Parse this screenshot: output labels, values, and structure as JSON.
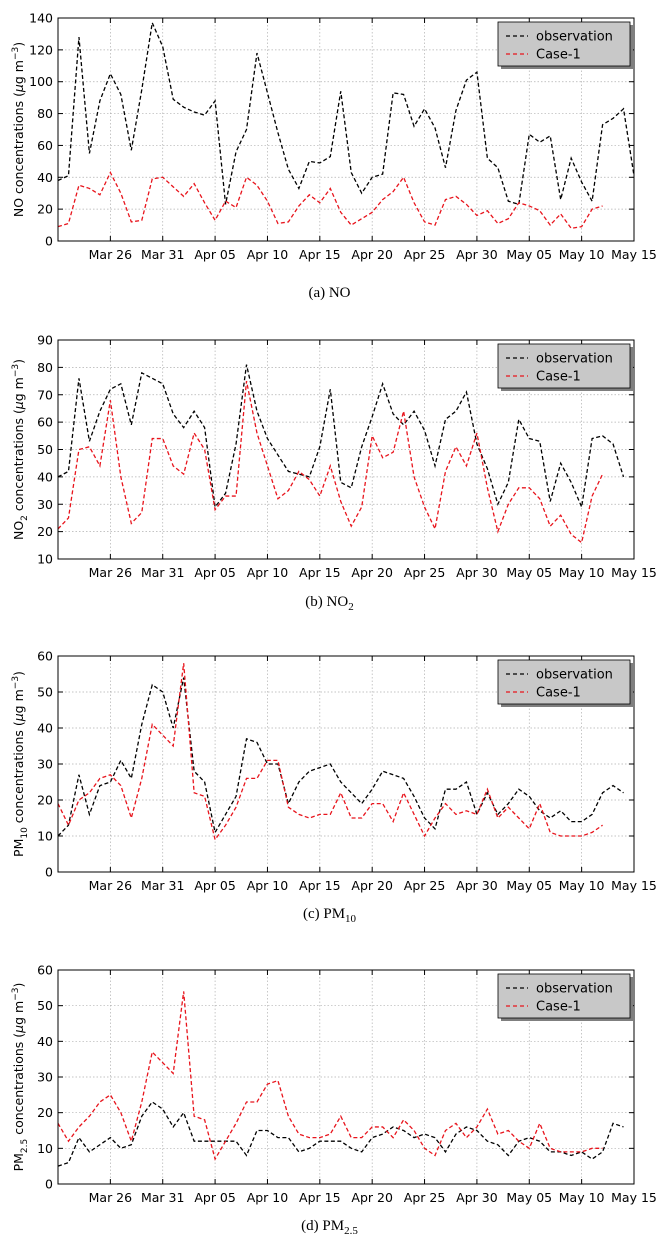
{
  "chart_data": [
    {
      "type": "line",
      "caption": "(a) NO",
      "ylabel_main": "NO concentrations (",
      "ylabel_mu": "μ",
      "ylabel_unit": "g m",
      "ylabel_sup": "−3",
      "ylabel_end": ")",
      "ylim": [
        0,
        140
      ],
      "yticks": [
        0,
        20,
        40,
        60,
        80,
        100,
        120,
        140
      ],
      "xlim": [
        0,
        55
      ],
      "xtick_positions": [
        5,
        10,
        15,
        20,
        25,
        30,
        35,
        40,
        45,
        50,
        55
      ],
      "xtick_labels": [
        "Mar 26",
        "Mar 31",
        "Apr 05",
        "Apr 10",
        "Apr 15",
        "Apr 20",
        "Apr 25",
        "Apr 30",
        "May 05",
        "May 10",
        "May 15"
      ],
      "grid": true,
      "legend_position": "top-right",
      "series": [
        {
          "name": "observation",
          "color": "#000000",
          "values": [
            38,
            41,
            128,
            55,
            88,
            105,
            92,
            57,
            95,
            137,
            122,
            89,
            84,
            81,
            79,
            88,
            23,
            56,
            70,
            118,
            93,
            68,
            45,
            33,
            50,
            49,
            53,
            94,
            43,
            30,
            40,
            42,
            93,
            92,
            72,
            83,
            71,
            46,
            82,
            101,
            106,
            52,
            46,
            25,
            23,
            67,
            62,
            66,
            26,
            52,
            37,
            25,
            73,
            77,
            83,
            41
          ]
        },
        {
          "name": "Case-1",
          "color": "#e8141c",
          "values": [
            9,
            11,
            35,
            33,
            29,
            43,
            30,
            12,
            13,
            39,
            40,
            34,
            28,
            36,
            24,
            13,
            25,
            21,
            40,
            35,
            25,
            11,
            12,
            22,
            29,
            24,
            33,
            18,
            10,
            14,
            18,
            26,
            31,
            40,
            24,
            12,
            10,
            26,
            28,
            23,
            16,
            19,
            11,
            14,
            24,
            22,
            19,
            10,
            17,
            8,
            9,
            20,
            22
          ]
        }
      ]
    },
    {
      "type": "line",
      "caption": "(b) NO",
      "caption_sub": "2",
      "ylabel_main": "NO",
      "ylabel_sub": "2",
      "ylabel_rest": " concentrations (",
      "ylabel_mu": "μ",
      "ylabel_unit": "g m",
      "ylabel_sup": "−3",
      "ylabel_end": ")",
      "ylim": [
        10,
        90
      ],
      "yticks": [
        10,
        20,
        30,
        40,
        50,
        60,
        70,
        80,
        90
      ],
      "xlim": [
        0,
        55
      ],
      "xtick_positions": [
        5,
        10,
        15,
        20,
        25,
        30,
        35,
        40,
        45,
        50,
        55
      ],
      "xtick_labels": [
        "Mar 26",
        "Mar 31",
        "Apr 05",
        "Apr 10",
        "Apr 15",
        "Apr 20",
        "Apr 25",
        "Apr 30",
        "May 05",
        "May 10",
        "May 15"
      ],
      "grid": true,
      "legend_position": "top-right",
      "series": [
        {
          "name": "observation",
          "color": "#000000",
          "values": [
            40,
            42,
            76,
            53,
            64,
            72,
            74,
            59,
            78,
            76,
            74,
            63,
            58,
            64,
            58,
            29,
            34,
            52,
            81,
            64,
            54,
            48,
            42,
            41,
            40,
            51,
            72,
            38,
            36,
            51,
            62,
            74,
            63,
            59,
            64,
            57,
            44,
            61,
            64,
            71,
            52,
            43,
            30,
            38,
            61,
            54,
            53,
            31,
            45,
            38,
            29,
            54,
            55,
            52,
            40
          ]
        },
        {
          "name": "Case-1",
          "color": "#e8141c",
          "values": [
            21,
            25,
            50,
            51,
            44,
            68,
            40,
            23,
            27,
            54,
            54,
            44,
            41,
            56,
            50,
            28,
            33,
            33,
            75,
            56,
            44,
            32,
            35,
            42,
            39,
            33,
            44,
            31,
            22,
            29,
            55,
            47,
            49,
            64,
            40,
            29,
            21,
            42,
            51,
            44,
            56,
            36,
            20,
            30,
            36,
            36,
            32,
            22,
            26,
            19,
            16,
            33,
            41
          ]
        }
      ]
    },
    {
      "type": "line",
      "caption": "(c) PM",
      "caption_sub": "10",
      "ylabel_main": "PM",
      "ylabel_sub": "10",
      "ylabel_rest": " concentrations (",
      "ylabel_mu": "μ",
      "ylabel_unit": "g m",
      "ylabel_sup": "−3",
      "ylabel_end": ")",
      "ylim": [
        0,
        60
      ],
      "yticks": [
        0,
        10,
        20,
        30,
        40,
        50,
        60
      ],
      "xlim": [
        0,
        55
      ],
      "xtick_positions": [
        5,
        10,
        15,
        20,
        25,
        30,
        35,
        40,
        45,
        50,
        55
      ],
      "xtick_labels": [
        "Mar 26",
        "Mar 31",
        "Apr 05",
        "Apr 10",
        "Apr 15",
        "Apr 20",
        "Apr 25",
        "Apr 30",
        "May 05",
        "May 10",
        "May 15"
      ],
      "grid": true,
      "legend_position": "top-right",
      "series": [
        {
          "name": "observation",
          "color": "#000000",
          "values": [
            10,
            13,
            27,
            16,
            24,
            25,
            31,
            26,
            41,
            52,
            50,
            40,
            54,
            28,
            25,
            11,
            16,
            21,
            37,
            36,
            30,
            30,
            19,
            25,
            28,
            29,
            30,
            25,
            22,
            19,
            23,
            28,
            27,
            26,
            21,
            15,
            12,
            23,
            23,
            25,
            16,
            22,
            16,
            19,
            23,
            21,
            17,
            15,
            17,
            14,
            14,
            16,
            22,
            24,
            22
          ]
        },
        {
          "name": "Case-1",
          "color": "#e8141c",
          "values": [
            19,
            13,
            20,
            22,
            26,
            27,
            24,
            15,
            26,
            41,
            38,
            35,
            58,
            22,
            21,
            9,
            13,
            18,
            26,
            26,
            31,
            31,
            18,
            16,
            15,
            16,
            16,
            22,
            15,
            15,
            19,
            19,
            14,
            22,
            16,
            10,
            15,
            19,
            16,
            17,
            16,
            23,
            15,
            18,
            15,
            12,
            19,
            11,
            10,
            10,
            10,
            11,
            13
          ]
        }
      ]
    },
    {
      "type": "line",
      "caption": "(d) PM",
      "caption_sub": "2.5",
      "ylabel_main": "PM",
      "ylabel_sub": "2.5",
      "ylabel_rest": " concentrations (",
      "ylabel_mu": "μ",
      "ylabel_unit": "g m",
      "ylabel_sup": "−3",
      "ylabel_end": ")",
      "ylim": [
        0,
        60
      ],
      "yticks": [
        0,
        10,
        20,
        30,
        40,
        50,
        60
      ],
      "xlim": [
        0,
        55
      ],
      "xtick_positions": [
        5,
        10,
        15,
        20,
        25,
        30,
        35,
        40,
        45,
        50,
        55
      ],
      "xtick_labels": [
        "Mar 26",
        "Mar 31",
        "Apr 05",
        "Apr 10",
        "Apr 15",
        "Apr 20",
        "Apr 25",
        "Apr 30",
        "May 05",
        "May 10",
        "May 15"
      ],
      "grid": true,
      "legend_position": "top-right",
      "series": [
        {
          "name": "observation",
          "color": "#000000",
          "values": [
            5,
            6,
            13,
            9,
            11,
            13,
            10,
            11,
            19,
            23,
            21,
            16,
            20,
            12,
            12,
            12,
            12,
            12,
            8,
            15,
            15,
            13,
            13,
            9,
            10,
            12,
            12,
            12,
            10,
            9,
            13,
            14,
            16,
            15,
            13,
            14,
            13,
            9,
            14,
            16,
            15,
            12,
            11,
            8,
            12,
            13,
            12,
            9,
            9,
            8,
            9,
            7,
            9,
            17,
            16
          ]
        },
        {
          "name": "Case-1",
          "color": "#e8141c",
          "values": [
            17,
            12,
            16,
            19,
            23,
            25,
            20,
            12,
            23,
            37,
            34,
            31,
            54,
            19,
            18,
            7,
            12,
            17,
            23,
            23,
            28,
            29,
            19,
            14,
            13,
            13,
            14,
            19,
            13,
            13,
            16,
            16,
            13,
            18,
            15,
            10,
            8,
            15,
            17,
            13,
            16,
            21,
            14,
            15,
            12,
            10,
            17,
            10,
            9,
            9,
            9,
            10,
            10
          ]
        }
      ]
    }
  ]
}
